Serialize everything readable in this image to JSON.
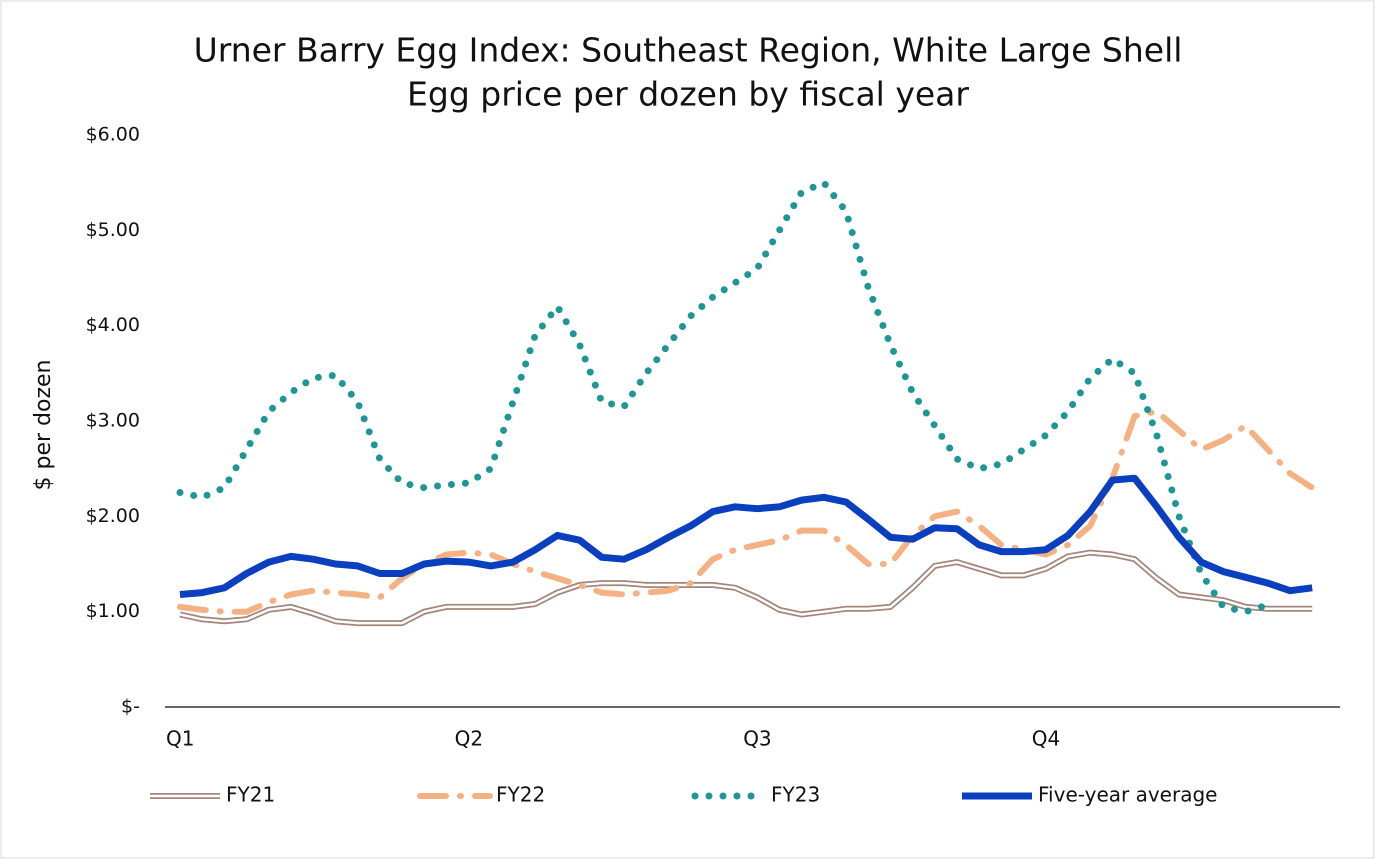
{
  "chart_data": {
    "type": "line",
    "title": "Urner Barry Egg Index: Southeast Region, White Large Shell",
    "subtitle": "Egg price per dozen by fiscal year",
    "y_label": "$ per dozen",
    "categories": [
      "Q1",
      null,
      null,
      null,
      null,
      null,
      null,
      null,
      null,
      null,
      null,
      null,
      null,
      "Q2",
      null,
      null,
      null,
      null,
      null,
      null,
      null,
      null,
      null,
      null,
      null,
      null,
      "Q3",
      null,
      null,
      null,
      null,
      null,
      null,
      null,
      null,
      null,
      null,
      null,
      null,
      "Q4",
      null,
      null,
      null,
      null,
      null,
      null,
      null,
      null,
      null,
      null,
      null,
      null
    ],
    "ylim": [
      0,
      6
    ],
    "yticks": [
      {
        "value": 0,
        "label": "$-"
      },
      {
        "value": 1,
        "label": "$1.00"
      },
      {
        "value": 2,
        "label": "$2.00"
      },
      {
        "value": 3,
        "label": "$3.00"
      },
      {
        "value": 4,
        "label": "$4.00"
      },
      {
        "value": 5,
        "label": "$5.00"
      },
      {
        "value": 6,
        "label": "$6.00"
      }
    ],
    "grid": false,
    "legend": "bottom",
    "series": [
      {
        "name": "FY21",
        "color": "#a3857a",
        "style": "double",
        "values": [
          0.97,
          0.92,
          0.9,
          0.92,
          1.02,
          1.05,
          0.98,
          0.9,
          0.88,
          0.88,
          0.88,
          1.0,
          1.05,
          1.05,
          1.05,
          1.05,
          1.08,
          1.2,
          1.28,
          1.3,
          1.3,
          1.28,
          1.28,
          1.28,
          1.28,
          1.25,
          1.15,
          1.02,
          0.97,
          1.0,
          1.03,
          1.03,
          1.05,
          1.25,
          1.48,
          1.52,
          1.45,
          1.38,
          1.38,
          1.45,
          1.58,
          1.62,
          1.6,
          1.55,
          1.35,
          1.18,
          1.15,
          1.12,
          1.05,
          1.03,
          1.03,
          1.03
        ]
      },
      {
        "name": "FY22",
        "color": "#f4b183",
        "style": "dashdot",
        "values": [
          1.05,
          1.02,
          1.0,
          1.0,
          1.1,
          1.18,
          1.22,
          1.2,
          1.18,
          1.15,
          1.35,
          1.5,
          1.6,
          1.62,
          1.6,
          1.5,
          1.42,
          1.35,
          1.28,
          1.2,
          1.18,
          1.2,
          1.22,
          1.3,
          1.55,
          1.65,
          1.7,
          1.75,
          1.85,
          1.85,
          1.7,
          1.5,
          1.5,
          1.8,
          2.0,
          2.05,
          1.9,
          1.7,
          1.65,
          1.6,
          1.7,
          1.9,
          2.4,
          3.05,
          3.1,
          2.9,
          2.7,
          2.8,
          2.95,
          2.7,
          2.45,
          2.3
        ]
      },
      {
        "name": "FY23",
        "color": "#1e9696",
        "style": "dotted",
        "values": [
          2.25,
          2.2,
          2.3,
          2.7,
          3.1,
          3.3,
          3.45,
          3.48,
          3.2,
          2.6,
          2.35,
          2.3,
          2.33,
          2.35,
          2.5,
          3.2,
          3.9,
          4.2,
          3.8,
          3.2,
          3.15,
          3.5,
          3.8,
          4.1,
          4.3,
          4.45,
          4.6,
          5.0,
          5.4,
          5.5,
          5.2,
          4.4,
          3.8,
          3.3,
          2.95,
          2.6,
          2.5,
          2.55,
          2.7,
          2.85,
          3.1,
          3.45,
          3.65,
          3.5,
          2.85,
          2.0,
          1.4,
          1.05,
          1.0,
          1.07,
          null,
          null
        ]
      },
      {
        "name": "Five-year average",
        "color": "#0a3fbf",
        "style": "solid",
        "values": [
          1.18,
          1.2,
          1.25,
          1.4,
          1.52,
          1.58,
          1.55,
          1.5,
          1.48,
          1.4,
          1.4,
          1.5,
          1.53,
          1.52,
          1.48,
          1.52,
          1.65,
          1.8,
          1.75,
          1.57,
          1.55,
          1.65,
          1.78,
          1.9,
          2.05,
          2.1,
          2.08,
          2.1,
          2.17,
          2.2,
          2.15,
          1.97,
          1.78,
          1.76,
          1.88,
          1.87,
          1.7,
          1.63,
          1.63,
          1.65,
          1.8,
          2.05,
          2.38,
          2.4,
          2.1,
          1.78,
          1.52,
          1.42,
          1.36,
          1.3,
          1.22,
          1.25
        ]
      }
    ]
  }
}
